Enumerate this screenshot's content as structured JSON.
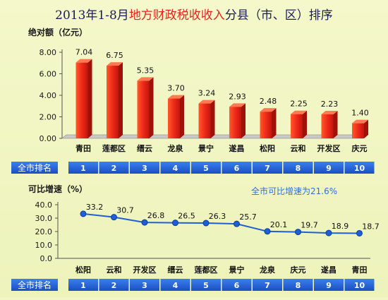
{
  "title": {
    "part1": "2013年1-8月",
    "part2": "地方财政税收收入",
    "part3": "分县（市、区）排序"
  },
  "colors": {
    "title_dark": "#1a1a60",
    "title_red": "#e8231c",
    "bar_red": "#e8251a",
    "line_blue": "#1f5fd6",
    "rank_bg": "#1f5fd6",
    "note_blue": "#2f6fe0"
  },
  "rank_label": "全市排名",
  "note": "全市可比增速为21.6%",
  "chart_data": [
    {
      "type": "bar",
      "ylabel": "绝对额（亿元）",
      "categories": [
        "青田",
        "莲都区",
        "缙云",
        "龙泉",
        "景宁",
        "遂昌",
        "松阳",
        "云和",
        "开发区",
        "庆元"
      ],
      "values": [
        7.04,
        6.75,
        5.35,
        3.7,
        3.24,
        2.93,
        2.48,
        2.25,
        2.23,
        1.4
      ],
      "value_labels": [
        "7.04",
        "6.75",
        "5.35",
        "3.70",
        "3.24",
        "2.93",
        "2.48",
        "2.25",
        "2.23",
        "1.40"
      ],
      "ylim": [
        0,
        8
      ],
      "yticks": [
        "0.00",
        "2.00",
        "4.00",
        "6.00",
        "8.00"
      ],
      "ranks": [
        "1",
        "2",
        "3",
        "4",
        "5",
        "6",
        "7",
        "8",
        "9",
        "10"
      ]
    },
    {
      "type": "line",
      "ylabel": "可比增速（%）",
      "categories": [
        "松阳",
        "云和",
        "开发区",
        "缙云",
        "莲都区",
        "景宁",
        "龙泉",
        "庆元",
        "遂昌",
        "青田"
      ],
      "values": [
        33.2,
        30.7,
        26.8,
        26.5,
        26.3,
        25.7,
        20.1,
        19.7,
        18.9,
        18.7
      ],
      "value_labels": [
        "33.2",
        "30.7",
        "26.8",
        "26.5",
        "26.3",
        "25.7",
        "20.1",
        "19.7",
        "18.9",
        "18.7"
      ],
      "ylim": [
        0,
        40
      ],
      "yticks": [
        "0.0",
        "10.0",
        "20.0",
        "30.0",
        "40.0"
      ],
      "ranks": [
        "1",
        "2",
        "3",
        "4",
        "5",
        "6",
        "7",
        "8",
        "9",
        "10"
      ]
    }
  ]
}
